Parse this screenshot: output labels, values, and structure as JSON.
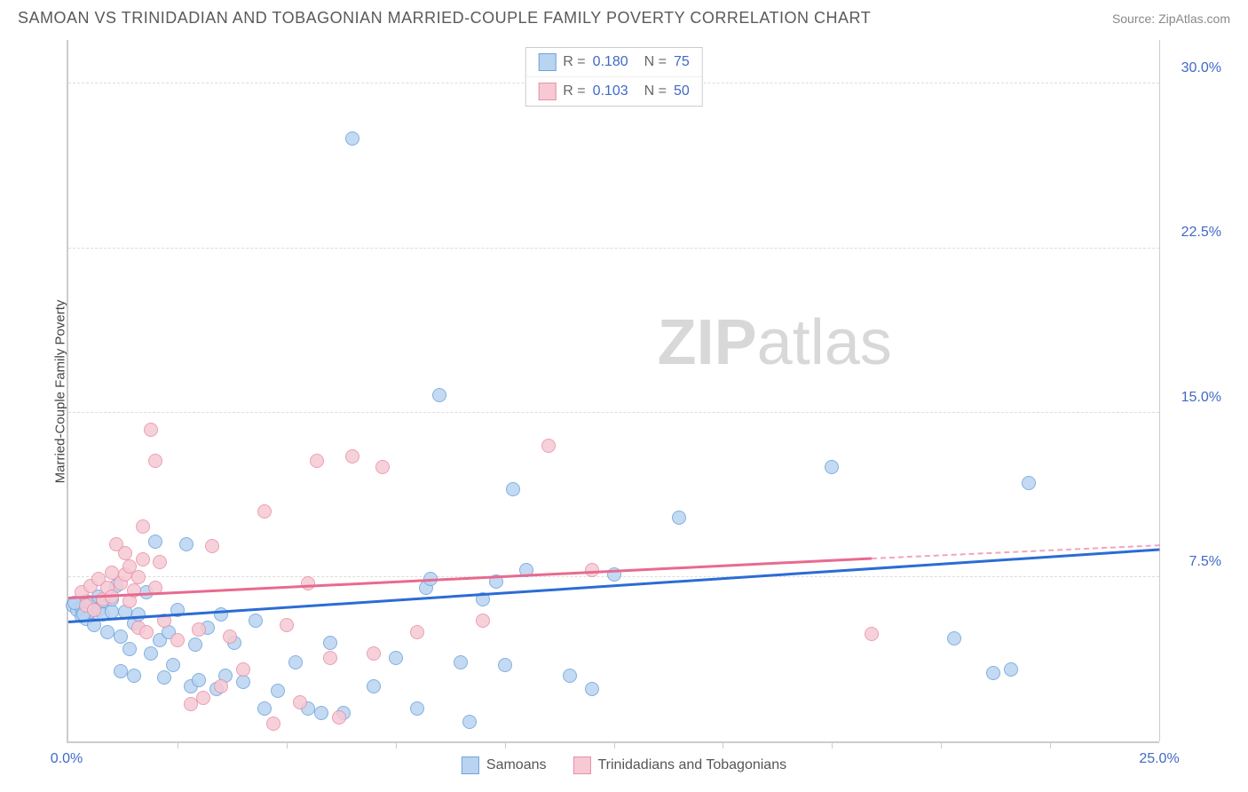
{
  "header": {
    "title": "SAMOAN VS TRINIDADIAN AND TOBAGONIAN MARRIED-COUPLE FAMILY POVERTY CORRELATION CHART",
    "source": "Source: ZipAtlas.com"
  },
  "watermark": {
    "bold": "ZIP",
    "rest": "atlas"
  },
  "chart": {
    "type": "scatter",
    "y_label": "Married-Couple Family Poverty",
    "background_color": "#ffffff",
    "grid_color": "#dddddd",
    "axis_color": "#cccccc",
    "tick_label_color": "#4169c8",
    "xlim": [
      0,
      25
    ],
    "ylim": [
      0,
      32
    ],
    "y_ticks": [
      7.5,
      15.0,
      22.5,
      30.0
    ],
    "y_tick_labels": [
      "7.5%",
      "15.0%",
      "22.5%",
      "30.0%"
    ],
    "x_ticks_major": [
      0,
      25
    ],
    "x_tick_labels": [
      "0.0%",
      "25.0%"
    ],
    "x_ticks_minor": [
      2.5,
      5.0,
      7.5,
      10.0,
      12.5,
      15.0,
      17.5,
      20.0,
      22.5
    ],
    "marker_radius": 8,
    "marker_stroke_width": 1.2,
    "series": [
      {
        "name": "Samoans",
        "fill": "#b9d4f0",
        "stroke": "#6ea3de",
        "trend_color": "#2b6cd4",
        "trend": {
          "x0": 0,
          "y0": 5.4,
          "x1": 25,
          "y1": 8.7
        },
        "r_value": "0.180",
        "n_value": "75",
        "points": [
          [
            0.1,
            6.2
          ],
          [
            0.2,
            6.0
          ],
          [
            0.3,
            6.1
          ],
          [
            0.3,
            5.7
          ],
          [
            0.4,
            6.4
          ],
          [
            0.4,
            5.6
          ],
          [
            0.5,
            5.9
          ],
          [
            0.5,
            6.3
          ],
          [
            0.6,
            5.3
          ],
          [
            0.7,
            6.0
          ],
          [
            0.7,
            6.6
          ],
          [
            0.8,
            6.4
          ],
          [
            0.8,
            5.8
          ],
          [
            0.9,
            5.0
          ],
          [
            1.0,
            5.9
          ],
          [
            1.0,
            6.5
          ],
          [
            1.1,
            7.1
          ],
          [
            1.2,
            4.8
          ],
          [
            1.2,
            3.2
          ],
          [
            1.3,
            5.9
          ],
          [
            1.4,
            4.2
          ],
          [
            1.5,
            5.4
          ],
          [
            1.5,
            3.0
          ],
          [
            1.6,
            5.8
          ],
          [
            1.8,
            6.8
          ],
          [
            1.9,
            4.0
          ],
          [
            2.0,
            9.1
          ],
          [
            2.1,
            4.6
          ],
          [
            2.2,
            2.9
          ],
          [
            2.3,
            5.0
          ],
          [
            2.4,
            3.5
          ],
          [
            2.5,
            6.0
          ],
          [
            2.7,
            9.0
          ],
          [
            2.8,
            2.5
          ],
          [
            2.9,
            4.4
          ],
          [
            3.0,
            2.8
          ],
          [
            3.2,
            5.2
          ],
          [
            3.4,
            2.4
          ],
          [
            3.5,
            5.8
          ],
          [
            3.6,
            3.0
          ],
          [
            3.8,
            4.5
          ],
          [
            4.0,
            2.7
          ],
          [
            4.3,
            5.5
          ],
          [
            4.5,
            1.5
          ],
          [
            4.8,
            2.3
          ],
          [
            5.2,
            3.6
          ],
          [
            5.5,
            1.5
          ],
          [
            5.8,
            1.3
          ],
          [
            6.0,
            4.5
          ],
          [
            6.3,
            1.3
          ],
          [
            6.5,
            27.5
          ],
          [
            7.0,
            2.5
          ],
          [
            7.5,
            3.8
          ],
          [
            8.0,
            1.5
          ],
          [
            8.2,
            7.0
          ],
          [
            8.3,
            7.4
          ],
          [
            8.5,
            15.8
          ],
          [
            9.0,
            3.6
          ],
          [
            9.2,
            0.9
          ],
          [
            9.5,
            6.5
          ],
          [
            9.8,
            7.3
          ],
          [
            10.0,
            3.5
          ],
          [
            10.2,
            11.5
          ],
          [
            10.5,
            7.8
          ],
          [
            11.5,
            3.0
          ],
          [
            12.0,
            2.4
          ],
          [
            12.5,
            7.6
          ],
          [
            14.0,
            10.2
          ],
          [
            17.5,
            12.5
          ],
          [
            20.3,
            4.7
          ],
          [
            21.2,
            3.1
          ],
          [
            21.6,
            3.3
          ],
          [
            22.0,
            11.8
          ],
          [
            0.15,
            6.3
          ],
          [
            0.35,
            5.8
          ]
        ]
      },
      {
        "name": "Trinidadians and Tobagonians",
        "fill": "#f6c9d4",
        "stroke": "#e890a8",
        "trend_color": "#e86a8f",
        "trend": {
          "x0": 0,
          "y0": 6.5,
          "x1": 18.4,
          "y1": 8.3
        },
        "trend_dash": {
          "x0": 18.4,
          "y0": 8.3,
          "x1": 25,
          "y1": 8.9
        },
        "r_value": "0.103",
        "n_value": "50",
        "points": [
          [
            0.3,
            6.8
          ],
          [
            0.4,
            6.2
          ],
          [
            0.5,
            7.1
          ],
          [
            0.6,
            6.0
          ],
          [
            0.7,
            7.4
          ],
          [
            0.8,
            6.5
          ],
          [
            0.9,
            7.0
          ],
          [
            1.0,
            6.6
          ],
          [
            1.0,
            7.7
          ],
          [
            1.1,
            9.0
          ],
          [
            1.2,
            7.2
          ],
          [
            1.3,
            7.6
          ],
          [
            1.3,
            8.6
          ],
          [
            1.4,
            6.4
          ],
          [
            1.4,
            8.0
          ],
          [
            1.5,
            6.9
          ],
          [
            1.6,
            7.5
          ],
          [
            1.6,
            5.2
          ],
          [
            1.7,
            8.3
          ],
          [
            1.7,
            9.8
          ],
          [
            1.8,
            5.0
          ],
          [
            1.9,
            14.2
          ],
          [
            2.0,
            7.0
          ],
          [
            2.0,
            12.8
          ],
          [
            2.1,
            8.2
          ],
          [
            2.2,
            5.5
          ],
          [
            2.5,
            4.6
          ],
          [
            2.8,
            1.7
          ],
          [
            3.0,
            5.1
          ],
          [
            3.1,
            2.0
          ],
          [
            3.3,
            8.9
          ],
          [
            3.5,
            2.5
          ],
          [
            3.7,
            4.8
          ],
          [
            4.0,
            3.3
          ],
          [
            4.5,
            10.5
          ],
          [
            4.7,
            0.8
          ],
          [
            5.0,
            5.3
          ],
          [
            5.3,
            1.8
          ],
          [
            5.5,
            7.2
          ],
          [
            5.7,
            12.8
          ],
          [
            6.0,
            3.8
          ],
          [
            6.2,
            1.1
          ],
          [
            6.5,
            13.0
          ],
          [
            7.0,
            4.0
          ],
          [
            7.2,
            12.5
          ],
          [
            8.0,
            5.0
          ],
          [
            9.5,
            5.5
          ],
          [
            11.0,
            13.5
          ],
          [
            12.0,
            7.8
          ],
          [
            18.4,
            4.9
          ]
        ]
      }
    ]
  },
  "legend_top": {
    "r_label": "R =",
    "n_label": "N ="
  },
  "legend_bottom": {
    "items": [
      "Samoans",
      "Trinidadians and Tobagonians"
    ]
  }
}
